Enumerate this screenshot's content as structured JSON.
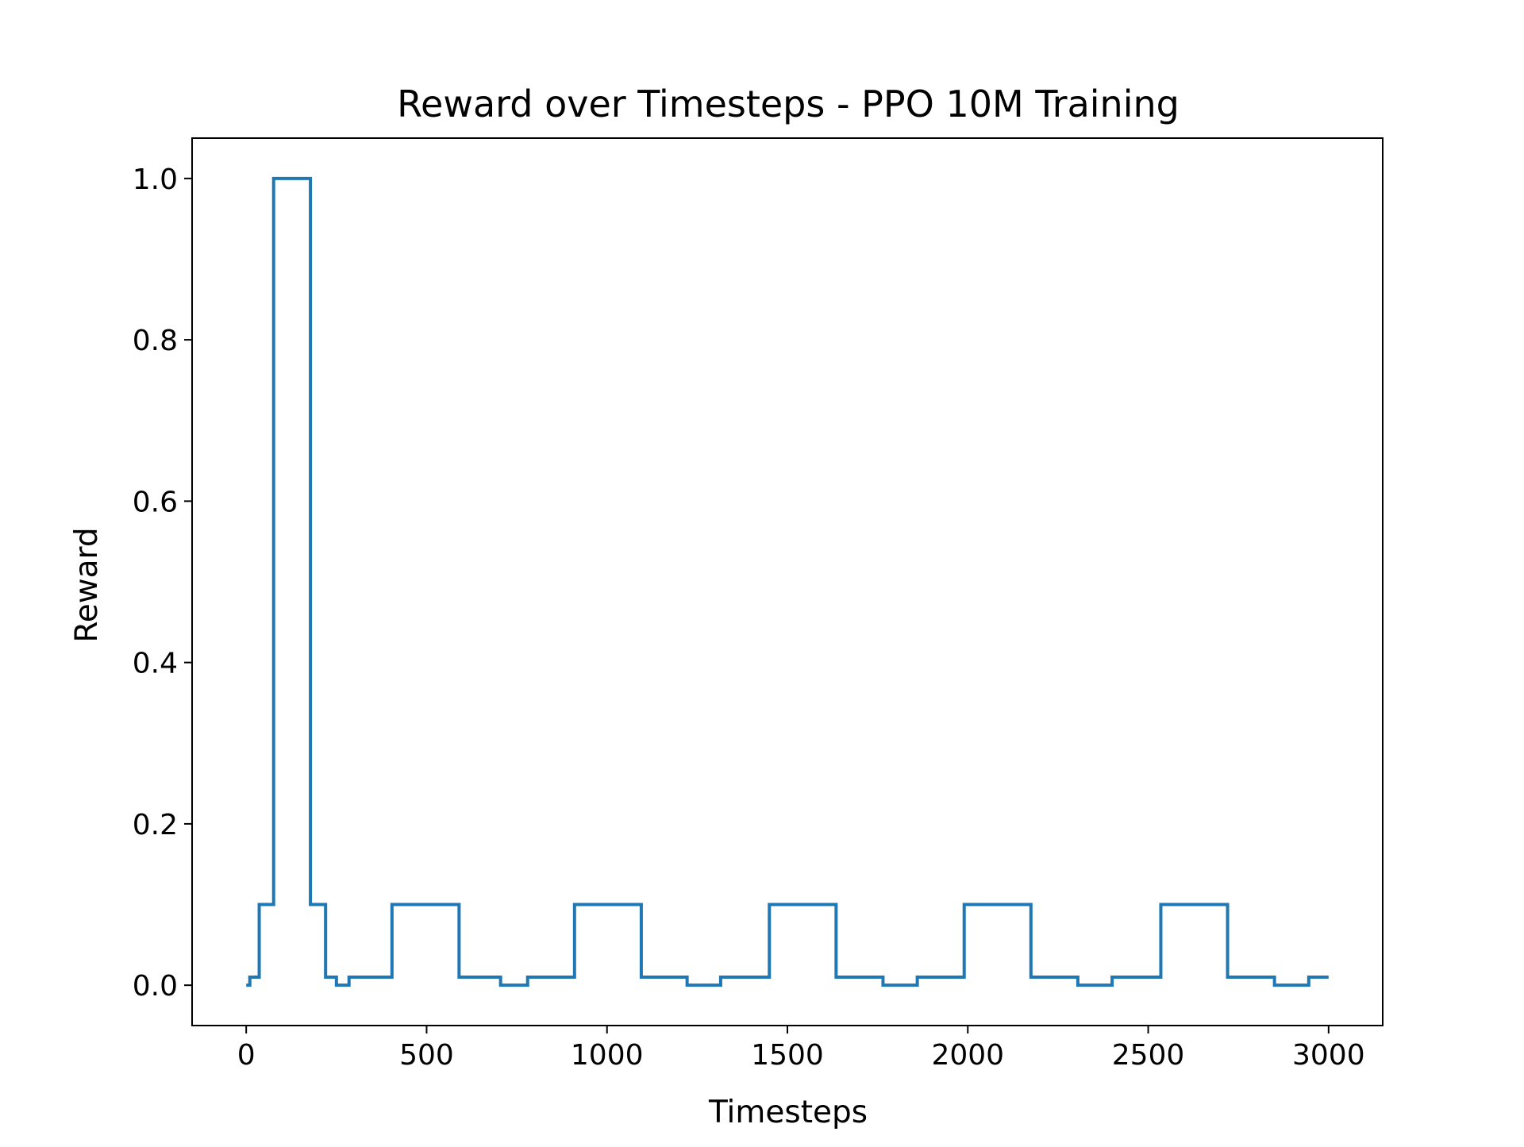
{
  "chart_data": {
    "type": "line",
    "title": "Reward over Timesteps - PPO 10M Training",
    "xlabel": "Timesteps",
    "ylabel": "Reward",
    "xlim": [
      -150,
      3150
    ],
    "ylim": [
      -0.05,
      1.05
    ],
    "x_ticks": [
      0,
      500,
      1000,
      1500,
      2000,
      2500,
      3000
    ],
    "x_tick_labels": [
      "0",
      "500",
      "1000",
      "1500",
      "2000",
      "2500",
      "3000"
    ],
    "y_ticks": [
      0.0,
      0.2,
      0.4,
      0.6,
      0.8,
      1.0
    ],
    "y_tick_labels": [
      "0.0",
      "0.2",
      "0.4",
      "0.6",
      "0.8",
      "1.0"
    ],
    "grid": false,
    "legend": "none",
    "step": true,
    "series": [
      {
        "color": "#1f77b4",
        "x": [
          0,
          10,
          36,
          76,
          178,
          220,
          250,
          285,
          404,
          590,
          705,
          780,
          910,
          1095,
          1222,
          1315,
          1450,
          1635,
          1765,
          1860,
          1990,
          2175,
          2305,
          2400,
          2535,
          2720,
          2850,
          2945,
          3000
        ],
        "y": [
          0.0,
          0.01,
          0.1,
          1.0,
          0.1,
          0.01,
          0.0,
          0.01,
          0.1,
          0.01,
          0.0,
          0.01,
          0.1,
          0.01,
          0.0,
          0.01,
          0.1,
          0.01,
          0.0,
          0.01,
          0.1,
          0.01,
          0.0,
          0.01,
          0.1,
          0.01,
          0.0,
          0.01,
          0.01
        ]
      }
    ]
  }
}
